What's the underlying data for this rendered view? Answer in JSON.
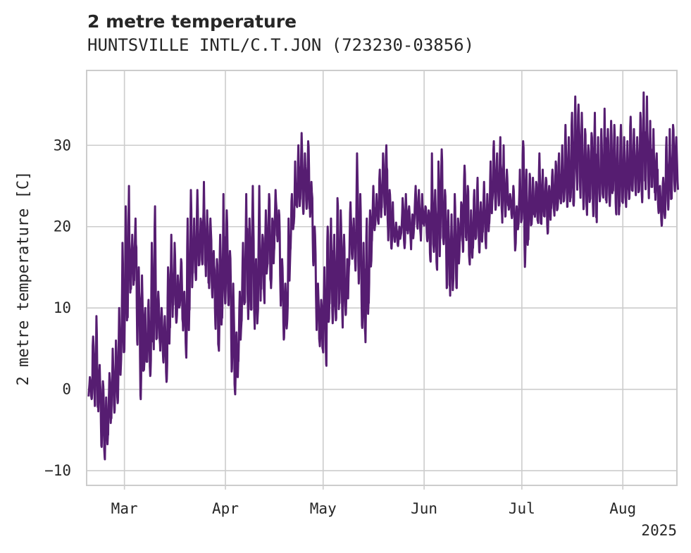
{
  "title": "2 metre temperature",
  "subtitle": "HUNTSVILLE INTL/C.T.JON (723230-03856)",
  "colors": {
    "line": "#561d71",
    "grid": "#cccccc",
    "frame": "#cccccc",
    "text": "#262626"
  },
  "chart_data": {
    "type": "line",
    "title": "2 metre temperature",
    "subtitle": "HUNTSVILLE INTL/C.T.JON (723230-03856)",
    "xlabel": "",
    "ylabel": "2 metre temperature [C]",
    "x_tick_labels": [
      "Mar",
      "Apr",
      "May",
      "Jun",
      "Jul",
      "Aug"
    ],
    "x_tick_dates": [
      "2025-03-01",
      "2025-04-01",
      "2025-05-01",
      "2025-06-01",
      "2025-07-01",
      "2025-08-01"
    ],
    "x_year_label": "2025",
    "xlim": [
      "2025-02-18",
      "2025-08-17"
    ],
    "ylim": [
      -11.8,
      39.2
    ],
    "y_ticks": [
      -10,
      0,
      10,
      20,
      30
    ],
    "grid": true,
    "series": [
      {
        "color": "#561d71",
        "resolution": "approx. 3-hourly readings, values estimated from image",
        "points": [
          [
            "2025-02-18",
            1.5,
            -1.0
          ],
          [
            "2025-02-19",
            6.5,
            -1.5
          ],
          [
            "2025-02-20",
            9.0,
            -2.5
          ],
          [
            "2025-02-21",
            3.0,
            -3.0
          ],
          [
            "2025-02-22",
            1.0,
            -7.5
          ],
          [
            "2025-02-23",
            -1.0,
            -9.0
          ],
          [
            "2025-02-24",
            2.0,
            -6.0
          ],
          [
            "2025-02-25",
            5.0,
            -4.0
          ],
          [
            "2025-02-26",
            6.0,
            -3.0
          ],
          [
            "2025-02-27",
            10.0,
            -2.0
          ],
          [
            "2025-02-28",
            18.0,
            3.0
          ],
          [
            "2025-03-01",
            22.5,
            4.0
          ],
          [
            "2025-03-02",
            25.0,
            8.0
          ],
          [
            "2025-03-03",
            19.0,
            12.0
          ],
          [
            "2025-03-04",
            21.0,
            13.0
          ],
          [
            "2025-03-05",
            15.0,
            5.0
          ],
          [
            "2025-03-06",
            14.0,
            -2.0
          ],
          [
            "2025-03-07",
            10.0,
            2.0
          ],
          [
            "2025-03-08",
            11.0,
            3.0
          ],
          [
            "2025-03-09",
            18.0,
            1.0
          ],
          [
            "2025-03-10",
            22.5,
            4.0
          ],
          [
            "2025-03-11",
            12.0,
            6.0
          ],
          [
            "2025-03-12",
            10.0,
            4.5
          ],
          [
            "2025-03-13",
            9.0,
            3.0
          ],
          [
            "2025-03-14",
            15.0,
            0.5
          ],
          [
            "2025-03-15",
            19.0,
            7.0
          ],
          [
            "2025-03-16",
            18.0,
            10.0
          ],
          [
            "2025-03-17",
            14.0,
            8.0
          ],
          [
            "2025-03-18",
            16.0,
            10.0
          ],
          [
            "2025-03-19",
            12.0,
            7.0
          ],
          [
            "2025-03-20",
            21.0,
            3.0
          ],
          [
            "2025-03-21",
            24.5,
            9.0
          ],
          [
            "2025-03-22",
            21.0,
            14.0
          ],
          [
            "2025-03-23",
            24.5,
            13.0
          ],
          [
            "2025-03-24",
            21.0,
            15.0
          ],
          [
            "2025-03-25",
            25.5,
            15.0
          ],
          [
            "2025-03-26",
            22.0,
            13.5
          ],
          [
            "2025-03-27",
            21.0,
            12.0
          ],
          [
            "2025-03-28",
            17.0,
            11.0
          ],
          [
            "2025-03-29",
            16.0,
            7.0
          ],
          [
            "2025-03-30",
            19.0,
            4.0
          ],
          [
            "2025-03-31",
            24.0,
            8.0
          ],
          [
            "2025-04-01",
            22.0,
            10.0
          ],
          [
            "2025-04-02",
            17.0,
            10.0
          ],
          [
            "2025-04-03",
            13.0,
            2.0
          ],
          [
            "2025-04-04",
            7.0,
            -1.0
          ],
          [
            "2025-04-05",
            12.0,
            3.0
          ],
          [
            "2025-04-06",
            18.0,
            8.0
          ],
          [
            "2025-04-07",
            24.0,
            10.0
          ],
          [
            "2025-04-08",
            21.0,
            8.0
          ],
          [
            "2025-04-09",
            25.0,
            9.0
          ],
          [
            "2025-04-10",
            16.0,
            7.0
          ],
          [
            "2025-04-11",
            25.0,
            9.0
          ],
          [
            "2025-04-12",
            19.0,
            12.0
          ],
          [
            "2025-04-13",
            22.0,
            10.0
          ],
          [
            "2025-04-14",
            24.0,
            15.0
          ],
          [
            "2025-04-15",
            21.0,
            12.0
          ],
          [
            "2025-04-16",
            24.5,
            17.0
          ],
          [
            "2025-04-17",
            22.0,
            18.0
          ],
          [
            "2025-04-18",
            16.0,
            10.0
          ],
          [
            "2025-04-19",
            13.0,
            6.0
          ],
          [
            "2025-04-20",
            21.0,
            8.0
          ],
          [
            "2025-04-21",
            24.0,
            17.0
          ],
          [
            "2025-04-22",
            28.0,
            20.0
          ],
          [
            "2025-04-23",
            30.0,
            22.0
          ],
          [
            "2025-04-24",
            31.5,
            23.0
          ],
          [
            "2025-04-25",
            29.0,
            21.5
          ],
          [
            "2025-04-26",
            30.5,
            22.0
          ],
          [
            "2025-04-27",
            25.5,
            21.0
          ],
          [
            "2025-04-28",
            20.0,
            15.0
          ],
          [
            "2025-04-29",
            13.0,
            7.0
          ],
          [
            "2025-04-30",
            11.0,
            5.0
          ],
          [
            "2025-05-01",
            15.0,
            4.0
          ],
          [
            "2025-05-02",
            20.0,
            2.0
          ],
          [
            "2025-05-03",
            21.0,
            10.0
          ],
          [
            "2025-05-04",
            19.0,
            8.0
          ],
          [
            "2025-05-05",
            23.5,
            8.0
          ],
          [
            "2025-05-06",
            22.0,
            10.0
          ],
          [
            "2025-05-07",
            19.0,
            7.0
          ],
          [
            "2025-05-08",
            16.0,
            9.0
          ],
          [
            "2025-05-09",
            23.0,
            15.0
          ],
          [
            "2025-05-10",
            21.0,
            16.0
          ],
          [
            "2025-05-11",
            29.0,
            14.5
          ],
          [
            "2025-05-12",
            24.0,
            13.0
          ],
          [
            "2025-05-13",
            18.0,
            7.0
          ],
          [
            "2025-05-14",
            21.0,
            5.0
          ],
          [
            "2025-05-15",
            22.0,
            10.0
          ],
          [
            "2025-05-16",
            25.0,
            18.0
          ],
          [
            "2025-05-17",
            24.0,
            20.0
          ],
          [
            "2025-05-18",
            27.0,
            20.0
          ],
          [
            "2025-05-19",
            29.0,
            22.0
          ],
          [
            "2025-05-20",
            30.0,
            21.0
          ],
          [
            "2025-05-21",
            24.5,
            18.0
          ],
          [
            "2025-05-22",
            23.0,
            17.0
          ],
          [
            "2025-05-23",
            20.5,
            18.0
          ],
          [
            "2025-05-24",
            20.0,
            17.5
          ],
          [
            "2025-05-25",
            23.5,
            19.0
          ],
          [
            "2025-05-26",
            24.0,
            17.0
          ],
          [
            "2025-05-27",
            22.5,
            19.0
          ],
          [
            "2025-05-28",
            21.5,
            17.0
          ],
          [
            "2025-05-29",
            25.0,
            20.0
          ],
          [
            "2025-05-30",
            24.5,
            19.5
          ],
          [
            "2025-05-31",
            24.0,
            18.0
          ],
          [
            "2025-06-01",
            22.5,
            20.0
          ],
          [
            "2025-06-02",
            22.0,
            18.0
          ],
          [
            "2025-06-03",
            29.0,
            15.0
          ],
          [
            "2025-06-04",
            24.5,
            16.5
          ],
          [
            "2025-06-05",
            28.0,
            14.0
          ],
          [
            "2025-06-06",
            29.5,
            18.0
          ],
          [
            "2025-06-07",
            24.5,
            17.5
          ],
          [
            "2025-06-08",
            22.0,
            12.0
          ],
          [
            "2025-06-09",
            21.5,
            11.0
          ],
          [
            "2025-06-10",
            24.0,
            13.0
          ],
          [
            "2025-06-11",
            21.0,
            12.0
          ],
          [
            "2025-06-12",
            23.0,
            18.0
          ],
          [
            "2025-06-13",
            27.5,
            16.5
          ],
          [
            "2025-06-14",
            25.0,
            18.0
          ],
          [
            "2025-06-15",
            22.0,
            15.0
          ],
          [
            "2025-06-16",
            24.5,
            17.0
          ],
          [
            "2025-06-17",
            26.0,
            18.5
          ],
          [
            "2025-06-18",
            23.0,
            16.5
          ],
          [
            "2025-06-19",
            25.5,
            19.0
          ],
          [
            "2025-06-20",
            24.0,
            17.0
          ],
          [
            "2025-06-21",
            28.0,
            20.0
          ],
          [
            "2025-06-22",
            30.5,
            23.0
          ],
          [
            "2025-06-23",
            29.0,
            22.0
          ],
          [
            "2025-06-24",
            31.0,
            22.5
          ],
          [
            "2025-06-25",
            30.0,
            20.0
          ],
          [
            "2025-06-26",
            27.0,
            21.0
          ],
          [
            "2025-06-27",
            24.0,
            22.0
          ],
          [
            "2025-06-28",
            25.0,
            21.0
          ],
          [
            "2025-06-29",
            22.5,
            17.0
          ],
          [
            "2025-06-30",
            27.0,
            20.0
          ],
          [
            "2025-07-01",
            30.5,
            20.5
          ],
          [
            "2025-07-02",
            27.0,
            15.0
          ],
          [
            "2025-07-03",
            26.5,
            18.0
          ],
          [
            "2025-07-04",
            26.0,
            20.0
          ],
          [
            "2025-07-05",
            25.5,
            21.0
          ],
          [
            "2025-07-06",
            29.0,
            20.0
          ],
          [
            "2025-07-07",
            27.0,
            20.0
          ],
          [
            "2025-07-08",
            26.0,
            21.0
          ],
          [
            "2025-07-09",
            25.0,
            19.0
          ],
          [
            "2025-07-10",
            27.0,
            22.0
          ],
          [
            "2025-07-11",
            28.0,
            21.0
          ],
          [
            "2025-07-12",
            29.0,
            22.0
          ],
          [
            "2025-07-13",
            30.0,
            22.5
          ],
          [
            "2025-07-14",
            32.5,
            23.0
          ],
          [
            "2025-07-15",
            31.0,
            22.0
          ],
          [
            "2025-07-16",
            34.0,
            23.0
          ],
          [
            "2025-07-17",
            36.0,
            22.5
          ],
          [
            "2025-07-18",
            35.0,
            24.0
          ],
          [
            "2025-07-19",
            34.0,
            23.0
          ],
          [
            "2025-07-20",
            32.0,
            22.0
          ],
          [
            "2025-07-21",
            30.0,
            21.0
          ],
          [
            "2025-07-22",
            31.5,
            23.0
          ],
          [
            "2025-07-23",
            34.0,
            21.0
          ],
          [
            "2025-07-24",
            31.0,
            20.0
          ],
          [
            "2025-07-25",
            32.0,
            23.0
          ],
          [
            "2025-07-26",
            34.5,
            23.0
          ],
          [
            "2025-07-27",
            32.0,
            22.5
          ],
          [
            "2025-07-28",
            33.0,
            22.0
          ],
          [
            "2025-07-29",
            32.5,
            24.0
          ],
          [
            "2025-07-30",
            31.0,
            21.0
          ],
          [
            "2025-07-31",
            32.5,
            22.0
          ],
          [
            "2025-08-01",
            31.0,
            22.5
          ],
          [
            "2025-08-02",
            30.5,
            22.0
          ],
          [
            "2025-08-03",
            33.5,
            23.0
          ],
          [
            "2025-08-04",
            32.0,
            24.0
          ],
          [
            "2025-08-05",
            31.0,
            23.5
          ],
          [
            "2025-08-06",
            34.0,
            24.0
          ],
          [
            "2025-08-07",
            36.5,
            23.0
          ],
          [
            "2025-08-08",
            36.0,
            24.0
          ],
          [
            "2025-08-09",
            33.0,
            23.0
          ],
          [
            "2025-08-10",
            32.0,
            24.5
          ],
          [
            "2025-08-11",
            29.0,
            23.0
          ],
          [
            "2025-08-12",
            25.0,
            21.5
          ],
          [
            "2025-08-13",
            26.0,
            20.0
          ],
          [
            "2025-08-14",
            31.0,
            21.0
          ],
          [
            "2025-08-15",
            32.0,
            22.0
          ],
          [
            "2025-08-16",
            32.5,
            23.0
          ],
          [
            "2025-08-17",
            31.0,
            24.0
          ]
        ]
      }
    ]
  }
}
